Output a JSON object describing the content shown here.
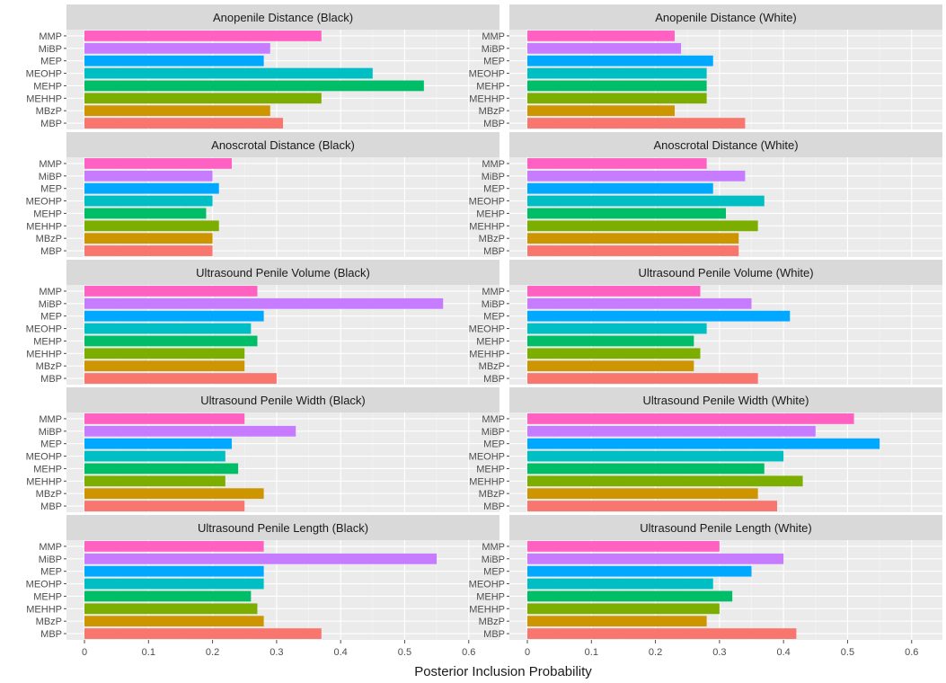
{
  "chart_data": {
    "type": "bar",
    "orientation": "horizontal",
    "xlabel": "Posterior Inclusion Probability",
    "xlim": [
      0,
      0.62
    ],
    "xticks": [
      0,
      0.1,
      0.2,
      0.3,
      0.4,
      0.5,
      0.6
    ],
    "xtick_labels": [
      "0",
      "0.1",
      "0.2",
      "0.3",
      "0.4",
      "0.5",
      "0.6"
    ],
    "categories": [
      "MMP",
      "MiBP",
      "MEP",
      "MEOHP",
      "MEHP",
      "MEHHP",
      "MBzP",
      "MBP"
    ],
    "colors": {
      "MMP": "#FF61C3",
      "MiBP": "#C77CFF",
      "MEP": "#00A9FF",
      "MEOHP": "#00BFC4",
      "MEHP": "#00BE67",
      "MEHHP": "#7CAE00",
      "MBzP": "#CD9600",
      "MBP": "#F8766D"
    },
    "panels": [
      {
        "title": "Anopenile Distance (Black)",
        "values": [
          0.37,
          0.29,
          0.28,
          0.45,
          0.53,
          0.37,
          0.29,
          0.31
        ]
      },
      {
        "title": "Anopenile Distance (White)",
        "values": [
          0.23,
          0.24,
          0.29,
          0.28,
          0.28,
          0.28,
          0.23,
          0.34
        ]
      },
      {
        "title": "Anoscrotal Distance (Black)",
        "values": [
          0.23,
          0.2,
          0.21,
          0.2,
          0.19,
          0.21,
          0.2,
          0.2
        ]
      },
      {
        "title": "Anoscrotal Distance (White)",
        "values": [
          0.28,
          0.34,
          0.29,
          0.37,
          0.31,
          0.36,
          0.33,
          0.33
        ]
      },
      {
        "title": "Ultrasound Penile Volume (Black)",
        "values": [
          0.27,
          0.56,
          0.28,
          0.26,
          0.27,
          0.25,
          0.25,
          0.3
        ]
      },
      {
        "title": "Ultrasound Penile Volume (White)",
        "values": [
          0.27,
          0.35,
          0.41,
          0.28,
          0.26,
          0.27,
          0.26,
          0.36
        ]
      },
      {
        "title": "Ultrasound Penile Width (Black)",
        "values": [
          0.25,
          0.33,
          0.23,
          0.22,
          0.24,
          0.22,
          0.28,
          0.25
        ]
      },
      {
        "title": "Ultrasound Penile Width (White)",
        "values": [
          0.51,
          0.45,
          0.55,
          0.4,
          0.37,
          0.43,
          0.36,
          0.39
        ]
      },
      {
        "title": "Ultrasound Penile Length (Black)",
        "values": [
          0.28,
          0.55,
          0.28,
          0.28,
          0.26,
          0.27,
          0.28,
          0.37
        ]
      },
      {
        "title": "Ultrasound Penile Length (White)",
        "values": [
          0.3,
          0.4,
          0.35,
          0.29,
          0.32,
          0.3,
          0.28,
          0.42
        ]
      }
    ]
  }
}
